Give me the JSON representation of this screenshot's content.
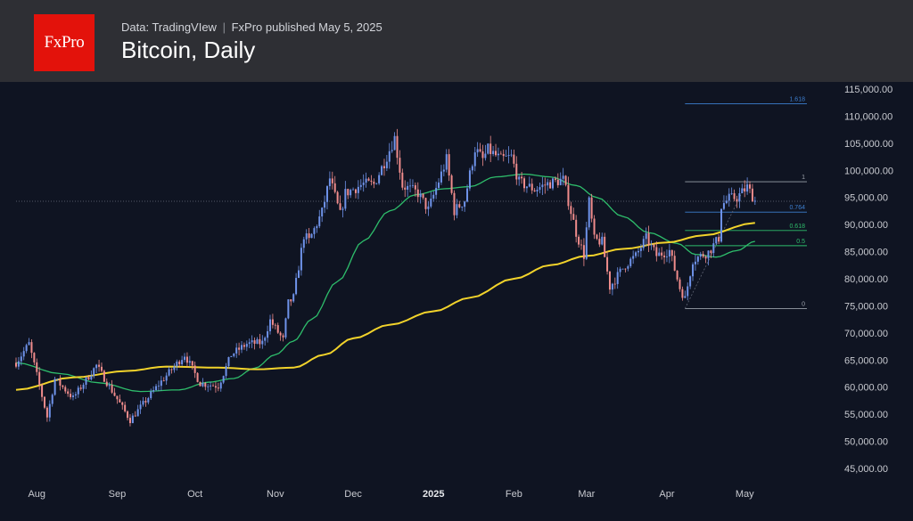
{
  "header": {
    "logo_text": "FxPro",
    "source": "Data: TradingVIew",
    "separator": "|",
    "publisher": "FxPro published May 5, 2025",
    "title": "Bitcoin, Daily"
  },
  "colors": {
    "background": "#0f1422",
    "header_bg": "#2e2f34",
    "logo_red": "#e3120b",
    "up_candle": "#6f93ea",
    "down_candle": "#f08c8c",
    "ma_short": "#2ebd6b",
    "ma_long": "#f2d32b",
    "fib_blue": "#3d7fd0",
    "fib_gray": "#9aa0aa"
  },
  "chart_data": {
    "type": "candlestick",
    "title": "Bitcoin, Daily",
    "y_axis": {
      "min": 40000,
      "max": 118000,
      "ticks": [
        115000,
        110000,
        105000,
        100000,
        95000,
        90000,
        85000,
        80000,
        75000,
        70000,
        65000,
        60000,
        55000,
        50000,
        45000
      ],
      "tick_labels": [
        "115,000.00",
        "110,000.00",
        "105,000.00",
        "100,000.00",
        "95,000.00",
        "90,000.00",
        "85,000.00",
        "80,000.00",
        "75,000.00",
        "70,000.00",
        "65,000.00",
        "60,000.00",
        "55,000.00",
        "50,000.00",
        "45,000.00"
      ],
      "position": "right"
    },
    "x_axis": {
      "start": "2024-07-24",
      "end": "2025-05-25",
      "ticks": [
        {
          "date": "2024-08-01",
          "label": "Aug",
          "bold": false
        },
        {
          "date": "2024-09-01",
          "label": "Sep",
          "bold": false
        },
        {
          "date": "2024-10-01",
          "label": "Oct",
          "bold": false
        },
        {
          "date": "2024-11-01",
          "label": "Nov",
          "bold": false
        },
        {
          "date": "2024-12-01",
          "label": "Dec",
          "bold": false
        },
        {
          "date": "2025-01-01",
          "label": "2025",
          "bold": true
        },
        {
          "date": "2025-02-01",
          "label": "Feb",
          "bold": false
        },
        {
          "date": "2025-03-01",
          "label": "Mar",
          "bold": false
        },
        {
          "date": "2025-04-01",
          "label": "Apr",
          "bold": false
        },
        {
          "date": "2025-05-01",
          "label": "May",
          "bold": false
        }
      ]
    },
    "ohlc_anchor_closes": [
      [
        "2024-07-24",
        64500
      ],
      [
        "2024-07-29",
        68000
      ],
      [
        "2024-08-05",
        54500
      ],
      [
        "2024-08-08",
        61500
      ],
      [
        "2024-08-15",
        58000
      ],
      [
        "2024-08-24",
        64000
      ],
      [
        "2024-09-06",
        53900
      ],
      [
        "2024-09-17",
        60500
      ],
      [
        "2024-09-27",
        66000
      ],
      [
        "2024-10-03",
        60700
      ],
      [
        "2024-10-10",
        60200
      ],
      [
        "2024-10-15",
        66000
      ],
      [
        "2024-10-21",
        68000
      ],
      [
        "2024-10-27",
        68200
      ],
      [
        "2024-10-30",
        72300
      ],
      [
        "2024-11-04",
        68700
      ],
      [
        "2024-11-06",
        75500
      ],
      [
        "2024-11-08",
        76500
      ],
      [
        "2024-11-12",
        88000
      ],
      [
        "2024-11-14",
        87000
      ],
      [
        "2024-11-19",
        92300
      ],
      [
        "2024-11-22",
        98500
      ],
      [
        "2024-11-26",
        91800
      ],
      [
        "2024-11-28",
        95800
      ],
      [
        "2024-12-05",
        97500
      ],
      [
        "2024-12-09",
        97400
      ],
      [
        "2024-12-13",
        101500
      ],
      [
        "2024-12-17",
        106000
      ],
      [
        "2024-12-20",
        97200
      ],
      [
        "2024-12-26",
        95800
      ],
      [
        "2024-12-30",
        92700
      ],
      [
        "2025-01-06",
        102000
      ],
      [
        "2025-01-09",
        92500
      ],
      [
        "2025-01-13",
        94500
      ],
      [
        "2025-01-17",
        104000
      ],
      [
        "2025-01-20",
        102000
      ],
      [
        "2025-01-22",
        103800
      ],
      [
        "2025-01-27",
        102000
      ],
      [
        "2025-01-31",
        102500
      ],
      [
        "2025-02-03",
        97800
      ],
      [
        "2025-02-09",
        96500
      ],
      [
        "2025-02-14",
        97500
      ],
      [
        "2025-02-20",
        98300
      ],
      [
        "2025-02-25",
        88500
      ],
      [
        "2025-02-28",
        84300
      ],
      [
        "2025-03-02",
        94200
      ],
      [
        "2025-03-04",
        87200
      ],
      [
        "2025-03-07",
        86800
      ],
      [
        "2025-03-10",
        78500
      ],
      [
        "2025-03-16",
        82600
      ],
      [
        "2025-03-20",
        84200
      ],
      [
        "2025-03-24",
        87500
      ],
      [
        "2025-03-28",
        84300
      ],
      [
        "2025-04-02",
        85200
      ],
      [
        "2025-04-06",
        78300
      ],
      [
        "2025-04-08",
        76300
      ],
      [
        "2025-04-11",
        83500
      ],
      [
        "2025-04-17",
        84900
      ],
      [
        "2025-04-21",
        87500
      ],
      [
        "2025-04-22",
        93500
      ],
      [
        "2025-04-25",
        94800
      ],
      [
        "2025-04-28",
        95000
      ],
      [
        "2025-05-02",
        96900
      ],
      [
        "2025-05-05",
        94400
      ]
    ],
    "series": [
      {
        "name": "",
        "color_key": "ma_short",
        "points": [
          [
            "2024-07-24",
            64500
          ],
          [
            "2024-08-10",
            62500
          ],
          [
            "2024-08-25",
            60800
          ],
          [
            "2024-09-10",
            59200
          ],
          [
            "2024-09-25",
            59500
          ],
          [
            "2024-10-06",
            60900
          ],
          [
            "2024-10-16",
            61600
          ],
          [
            "2024-10-24",
            63500
          ],
          [
            "2024-11-01",
            66000
          ],
          [
            "2024-11-08",
            68500
          ],
          [
            "2024-11-15",
            72500
          ],
          [
            "2024-11-25",
            79500
          ],
          [
            "2024-12-05",
            87000
          ],
          [
            "2024-12-15",
            92500
          ],
          [
            "2024-12-25",
            95500
          ],
          [
            "2025-01-05",
            96600
          ],
          [
            "2025-01-15",
            97000
          ],
          [
            "2025-01-25",
            98800
          ],
          [
            "2025-02-05",
            99300
          ],
          [
            "2025-02-15",
            98800
          ],
          [
            "2025-02-25",
            97200
          ],
          [
            "2025-03-05",
            95000
          ],
          [
            "2025-03-15",
            91500
          ],
          [
            "2025-03-25",
            88500
          ],
          [
            "2025-04-05",
            86500
          ],
          [
            "2025-04-12",
            84500
          ],
          [
            "2025-04-20",
            84000
          ],
          [
            "2025-04-28",
            85200
          ],
          [
            "2025-05-05",
            86900
          ]
        ]
      },
      {
        "name": "",
        "color_key": "ma_long",
        "points": [
          [
            "2024-07-24",
            59500
          ],
          [
            "2024-08-15",
            61800
          ],
          [
            "2024-09-05",
            63000
          ],
          [
            "2024-09-20",
            63800
          ],
          [
            "2024-10-10",
            63600
          ],
          [
            "2024-10-25",
            63300
          ],
          [
            "2024-11-08",
            63600
          ],
          [
            "2024-11-20",
            66000
          ],
          [
            "2024-12-01",
            69000
          ],
          [
            "2024-12-15",
            71500
          ],
          [
            "2025-01-01",
            74000
          ],
          [
            "2025-01-15",
            76500
          ],
          [
            "2025-02-01",
            80000
          ],
          [
            "2025-02-15",
            82500
          ],
          [
            "2025-03-01",
            84200
          ],
          [
            "2025-03-15",
            85500
          ],
          [
            "2025-04-01",
            86700
          ],
          [
            "2025-04-15",
            88000
          ],
          [
            "2025-05-05",
            90300
          ]
        ]
      }
    ],
    "current_price": 94300,
    "fibonacci": {
      "anchor_low": 74500,
      "anchor_high": 97900,
      "start_date": "2025-04-08",
      "end_date": "2025-05-25",
      "levels": [
        {
          "label": "1.618",
          "value": 112300,
          "color_key": "fib_blue"
        },
        {
          "label": "1",
          "value": 97900,
          "color_key": "fib_gray"
        },
        {
          "label": "0.764",
          "value": 92300,
          "color_key": "fib_blue"
        },
        {
          "label": "0.618",
          "value": 88900,
          "color_key": "ma_short"
        },
        {
          "label": "0.5",
          "value": 86100,
          "color_key": "ma_short"
        },
        {
          "label": "0",
          "value": 74500,
          "color_key": "fib_gray"
        }
      ]
    },
    "grid": false,
    "legend": "none"
  }
}
